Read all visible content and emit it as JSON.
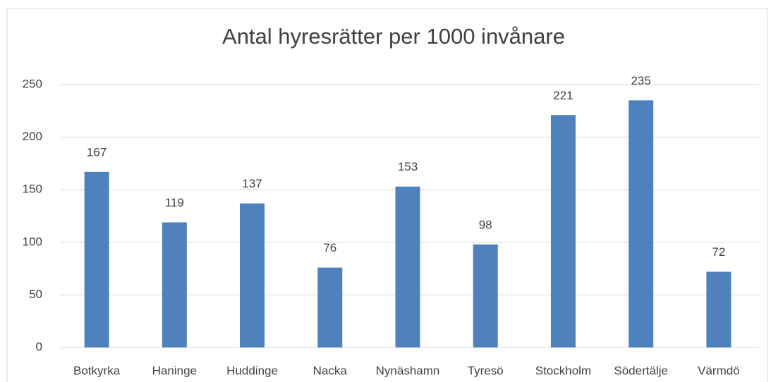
{
  "chart_data": {
    "type": "bar",
    "title": "Antal hyresrätter per 1000 invånare",
    "categories": [
      "Botkyrka",
      "Haninge",
      "Huddinge",
      "Nacka",
      "Nynäshamn",
      "Tyresö",
      "Stockholm",
      "Södertälje",
      "Värmdö"
    ],
    "values": [
      167,
      119,
      137,
      76,
      153,
      98,
      221,
      235,
      72
    ],
    "color": "#4f81bd",
    "ylim": [
      0,
      250
    ],
    "yticks": [
      0,
      50,
      100,
      150,
      200,
      250
    ],
    "grid": true
  }
}
